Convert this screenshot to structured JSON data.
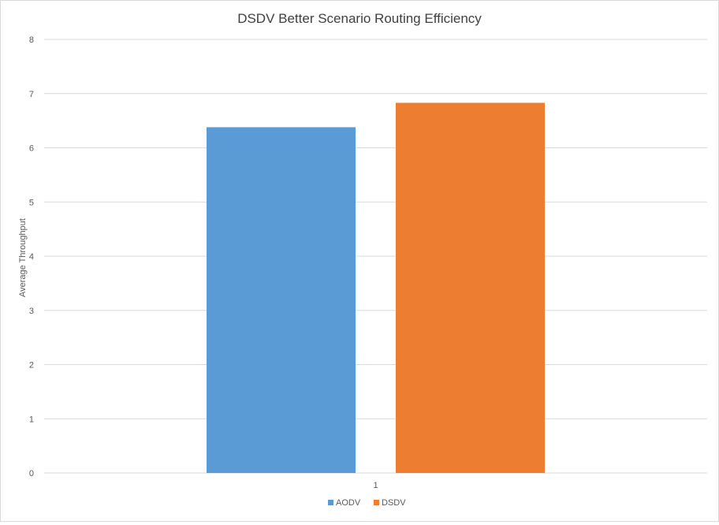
{
  "chart_data": {
    "type": "bar",
    "title": "DSDV Better Scenario Routing Efficiency",
    "xlabel": "",
    "ylabel": "Average Throughput",
    "categories": [
      "1"
    ],
    "series": [
      {
        "name": "AODV",
        "values": [
          6.38
        ],
        "color": "#5b9bd5"
      },
      {
        "name": "DSDV",
        "values": [
          6.83
        ],
        "color": "#ed7d31"
      }
    ],
    "ylim": [
      0,
      8
    ],
    "yticks": [
      "0",
      "1",
      "2",
      "3",
      "4",
      "5",
      "6",
      "7",
      "8"
    ],
    "grid": true,
    "legend_position": "bottom"
  },
  "colors": {
    "gridline": "#d9d9d9",
    "text": "#595959",
    "title": "#404040"
  }
}
